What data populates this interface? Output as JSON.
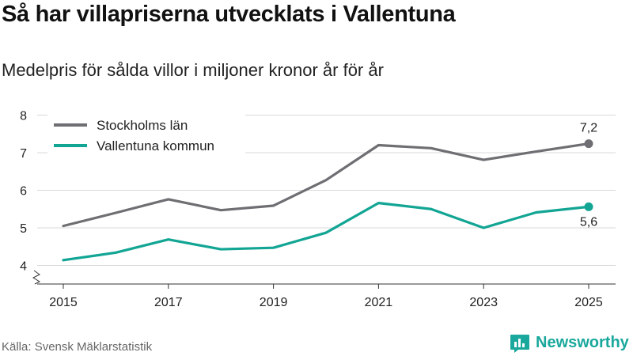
{
  "header": {
    "title": "Så har villapriserna utvecklats i Vallentuna",
    "subtitle": "Medelpris för sålda villor i miljoner kronor år för år"
  },
  "footer": {
    "source": "Källa: Svensk Mäklarstatistik",
    "brand": "Newsworthy",
    "brand_icon": "bar-chart-bubble-icon"
  },
  "colors": {
    "stockholm": "#6e6e73",
    "vallentuna": "#12a594",
    "grid": "#d9d9d9",
    "axis": "#333333",
    "brand": "#1aa89c"
  },
  "chart_data": {
    "type": "line",
    "x": [
      2015,
      2016,
      2017,
      2018,
      2019,
      2020,
      2021,
      2022,
      2023,
      2024,
      2025
    ],
    "x_tick_labels": [
      "2015",
      "2017",
      "2019",
      "2021",
      "2023",
      "2025"
    ],
    "x_ticks": [
      2015,
      2017,
      2019,
      2021,
      2023,
      2025
    ],
    "ylim": [
      4,
      8
    ],
    "y_ticks": [
      4,
      5,
      6,
      7,
      8
    ],
    "y_tick_labels": [
      "4",
      "5",
      "6",
      "7",
      "8"
    ],
    "grid": true,
    "legend_position": "top-left",
    "series": [
      {
        "name": "Stockholms län",
        "key": "stockholm",
        "values": [
          5.05,
          5.4,
          5.76,
          5.47,
          5.59,
          6.27,
          7.2,
          7.12,
          6.81,
          7.03,
          7.24
        ],
        "end_label": "7,2",
        "label_position": "above"
      },
      {
        "name": "Vallentuna kommun",
        "key": "vallentuna",
        "values": [
          4.14,
          4.34,
          4.69,
          4.43,
          4.47,
          4.87,
          5.66,
          5.5,
          5.0,
          5.41,
          5.56
        ],
        "end_label": "5,6",
        "label_position": "below"
      }
    ]
  }
}
